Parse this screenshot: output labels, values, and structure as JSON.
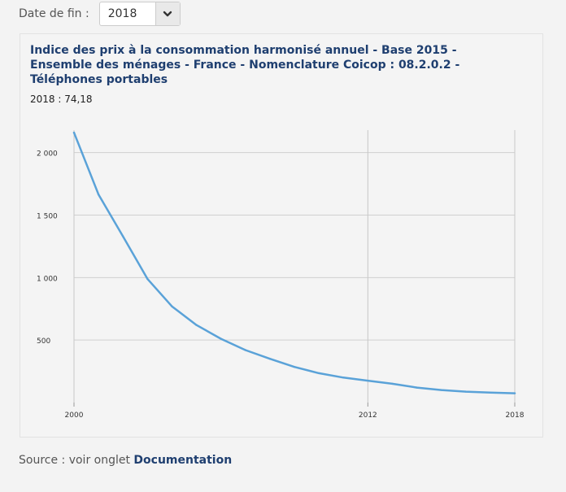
{
  "date_filter": {
    "label": "Date de fin :",
    "selected": "2018"
  },
  "chart_data": {
    "type": "line",
    "title": "Indice des prix à la consommation harmonisé annuel - Base 2015 - Ensemble des ménages - France - Nomenclature Coicop : 08.2.0.2 - Téléphones portables",
    "subtitle": "2018 : 74,18",
    "xlabel": "",
    "ylabel": "",
    "x": [
      2000,
      2001,
      2002,
      2003,
      2004,
      2005,
      2006,
      2007,
      2008,
      2009,
      2010,
      2011,
      2012,
      2013,
      2014,
      2015,
      2016,
      2017,
      2018
    ],
    "series": [
      {
        "values": [
          2160,
          1665,
          1330,
          990,
          770,
          620,
          510,
          420,
          350,
          285,
          235,
          200,
          175,
          150,
          120,
          100,
          87,
          80,
          74.18
        ]
      }
    ],
    "xlim": [
      2000,
      2018
    ],
    "ylim": [
      0,
      2180
    ],
    "x_ticks": [
      "2000",
      "2012",
      "2018"
    ],
    "x_tick_values": [
      2000,
      2012,
      2018
    ],
    "y_ticks": [
      "500",
      "1 000",
      "1 500",
      "2 000"
    ],
    "y_tick_values": [
      500,
      1000,
      1500,
      2000
    ],
    "grid": true,
    "line_color": "#5aa2d8"
  },
  "source": {
    "prefix": "Source : voir onglet",
    "link": "Documentation"
  }
}
